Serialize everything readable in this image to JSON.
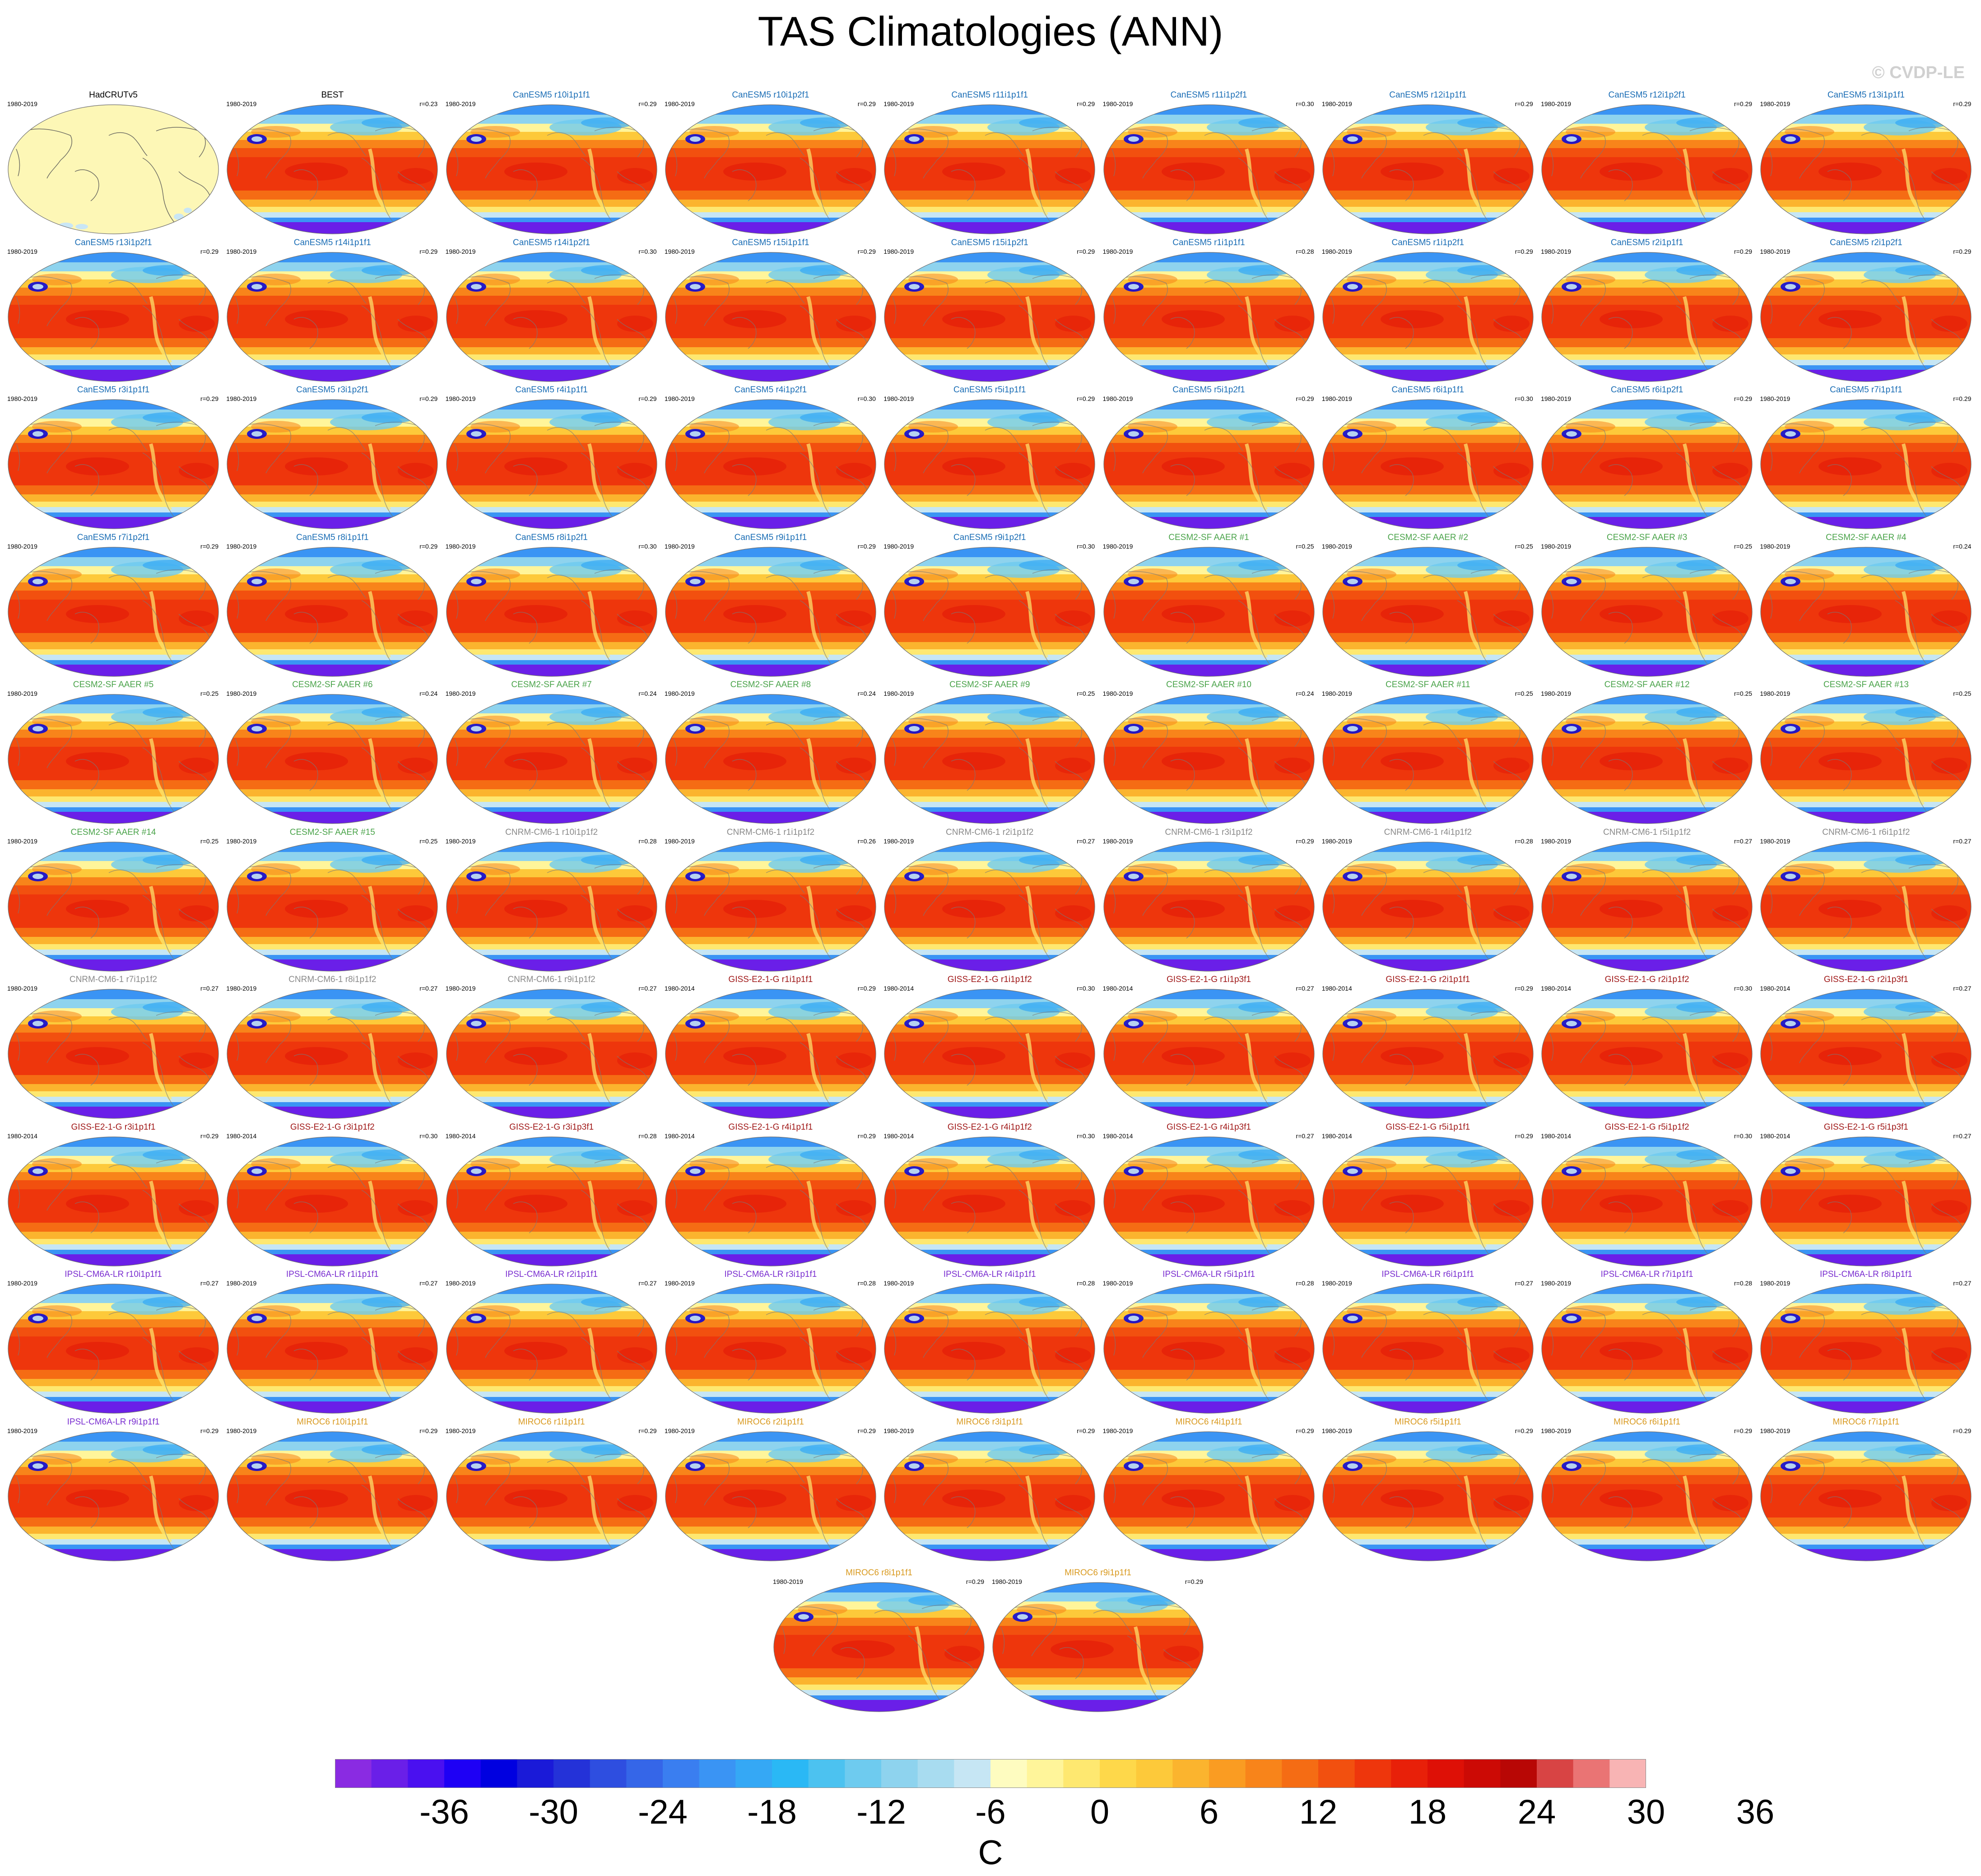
{
  "title": "TAS Climatologies (ANN)",
  "watermark": "© CVDP-LE",
  "colors": {
    "CanESM5": "#1a6db5",
    "CESM2": "#4aa34a",
    "CNRM": "#8a8a8a",
    "GISS": "#a01818",
    "IPSL": "#7a2ed0",
    "MIROC6": "#d99a20",
    "obs": "#000000"
  },
  "panels": [
    {
      "name": "HadCRUTv5",
      "period": "1980-2019",
      "r": "",
      "group": "obs",
      "obs": true
    },
    {
      "name": "BEST",
      "period": "1980-2019",
      "r": "r=0.23",
      "group": "obs"
    },
    {
      "name": "CanESM5 r10i1p1f1",
      "period": "1980-2019",
      "r": "r=0.29",
      "group": "CanESM5"
    },
    {
      "name": "CanESM5 r10i1p2f1",
      "period": "1980-2019",
      "r": "r=0.29",
      "group": "CanESM5"
    },
    {
      "name": "CanESM5 r11i1p1f1",
      "period": "1980-2019",
      "r": "r=0.29",
      "group": "CanESM5"
    },
    {
      "name": "CanESM5 r11i1p2f1",
      "period": "1980-2019",
      "r": "r=0.30",
      "group": "CanESM5"
    },
    {
      "name": "CanESM5 r12i1p1f1",
      "period": "1980-2019",
      "r": "r=0.29",
      "group": "CanESM5"
    },
    {
      "name": "CanESM5 r12i1p2f1",
      "period": "1980-2019",
      "r": "r=0.29",
      "group": "CanESM5"
    },
    {
      "name": "CanESM5 r13i1p1f1",
      "period": "1980-2019",
      "r": "r=0.29",
      "group": "CanESM5"
    },
    {
      "name": "CanESM5 r13i1p2f1",
      "period": "1980-2019",
      "r": "r=0.29",
      "group": "CanESM5"
    },
    {
      "name": "CanESM5 r14i1p1f1",
      "period": "1980-2019",
      "r": "r=0.29",
      "group": "CanESM5"
    },
    {
      "name": "CanESM5 r14i1p2f1",
      "period": "1980-2019",
      "r": "r=0.30",
      "group": "CanESM5"
    },
    {
      "name": "CanESM5 r15i1p1f1",
      "period": "1980-2019",
      "r": "r=0.29",
      "group": "CanESM5"
    },
    {
      "name": "CanESM5 r15i1p2f1",
      "period": "1980-2019",
      "r": "r=0.29",
      "group": "CanESM5"
    },
    {
      "name": "CanESM5 r1i1p1f1",
      "period": "1980-2019",
      "r": "r=0.28",
      "group": "CanESM5"
    },
    {
      "name": "CanESM5 r1i1p2f1",
      "period": "1980-2019",
      "r": "r=0.29",
      "group": "CanESM5"
    },
    {
      "name": "CanESM5 r2i1p1f1",
      "period": "1980-2019",
      "r": "r=0.29",
      "group": "CanESM5"
    },
    {
      "name": "CanESM5 r2i1p2f1",
      "period": "1980-2019",
      "r": "r=0.29",
      "group": "CanESM5"
    },
    {
      "name": "CanESM5 r3i1p1f1",
      "period": "1980-2019",
      "r": "r=0.29",
      "group": "CanESM5"
    },
    {
      "name": "CanESM5 r3i1p2f1",
      "period": "1980-2019",
      "r": "r=0.29",
      "group": "CanESM5"
    },
    {
      "name": "CanESM5 r4i1p1f1",
      "period": "1980-2019",
      "r": "r=0.29",
      "group": "CanESM5"
    },
    {
      "name": "CanESM5 r4i1p2f1",
      "period": "1980-2019",
      "r": "r=0.30",
      "group": "CanESM5"
    },
    {
      "name": "CanESM5 r5i1p1f1",
      "period": "1980-2019",
      "r": "r=0.29",
      "group": "CanESM5"
    },
    {
      "name": "CanESM5 r5i1p2f1",
      "period": "1980-2019",
      "r": "r=0.29",
      "group": "CanESM5"
    },
    {
      "name": "CanESM5 r6i1p1f1",
      "period": "1980-2019",
      "r": "r=0.30",
      "group": "CanESM5"
    },
    {
      "name": "CanESM5 r6i1p2f1",
      "period": "1980-2019",
      "r": "r=0.29",
      "group": "CanESM5"
    },
    {
      "name": "CanESM5 r7i1p1f1",
      "period": "1980-2019",
      "r": "r=0.29",
      "group": "CanESM5"
    },
    {
      "name": "CanESM5 r7i1p2f1",
      "period": "1980-2019",
      "r": "r=0.29",
      "group": "CanESM5"
    },
    {
      "name": "CanESM5 r8i1p1f1",
      "period": "1980-2019",
      "r": "r=0.29",
      "group": "CanESM5"
    },
    {
      "name": "CanESM5 r8i1p2f1",
      "period": "1980-2019",
      "r": "r=0.30",
      "group": "CanESM5"
    },
    {
      "name": "CanESM5 r9i1p1f1",
      "period": "1980-2019",
      "r": "r=0.29",
      "group": "CanESM5"
    },
    {
      "name": "CanESM5 r9i1p2f1",
      "period": "1980-2019",
      "r": "r=0.30",
      "group": "CanESM5"
    },
    {
      "name": "CESM2-SF AAER #1",
      "period": "1980-2019",
      "r": "r=0.25",
      "group": "CESM2"
    },
    {
      "name": "CESM2-SF AAER #2",
      "period": "1980-2019",
      "r": "r=0.25",
      "group": "CESM2"
    },
    {
      "name": "CESM2-SF AAER #3",
      "period": "1980-2019",
      "r": "r=0.25",
      "group": "CESM2"
    },
    {
      "name": "CESM2-SF AAER #4",
      "period": "1980-2019",
      "r": "r=0.24",
      "group": "CESM2"
    },
    {
      "name": "CESM2-SF AAER #5",
      "period": "1980-2019",
      "r": "r=0.25",
      "group": "CESM2"
    },
    {
      "name": "CESM2-SF AAER #6",
      "period": "1980-2019",
      "r": "r=0.24",
      "group": "CESM2"
    },
    {
      "name": "CESM2-SF AAER #7",
      "period": "1980-2019",
      "r": "r=0.24",
      "group": "CESM2"
    },
    {
      "name": "CESM2-SF AAER #8",
      "period": "1980-2019",
      "r": "r=0.24",
      "group": "CESM2"
    },
    {
      "name": "CESM2-SF AAER #9",
      "period": "1980-2019",
      "r": "r=0.25",
      "group": "CESM2"
    },
    {
      "name": "CESM2-SF AAER #10",
      "period": "1980-2019",
      "r": "r=0.24",
      "group": "CESM2"
    },
    {
      "name": "CESM2-SF AAER #11",
      "period": "1980-2019",
      "r": "r=0.25",
      "group": "CESM2"
    },
    {
      "name": "CESM2-SF AAER #12",
      "period": "1980-2019",
      "r": "r=0.25",
      "group": "CESM2"
    },
    {
      "name": "CESM2-SF AAER #13",
      "period": "1980-2019",
      "r": "r=0.25",
      "group": "CESM2"
    },
    {
      "name": "CESM2-SF AAER #14",
      "period": "1980-2019",
      "r": "r=0.25",
      "group": "CESM2"
    },
    {
      "name": "CESM2-SF AAER #15",
      "period": "1980-2019",
      "r": "r=0.25",
      "group": "CESM2"
    },
    {
      "name": "CNRM-CM6-1 r10i1p1f2",
      "period": "1980-2019",
      "r": "r=0.28",
      "group": "CNRM"
    },
    {
      "name": "CNRM-CM6-1 r1i1p1f2",
      "period": "1980-2019",
      "r": "r=0.26",
      "group": "CNRM"
    },
    {
      "name": "CNRM-CM6-1 r2i1p1f2",
      "period": "1980-2019",
      "r": "r=0.27",
      "group": "CNRM"
    },
    {
      "name": "CNRM-CM6-1 r3i1p1f2",
      "period": "1980-2019",
      "r": "r=0.29",
      "group": "CNRM"
    },
    {
      "name": "CNRM-CM6-1 r4i1p1f2",
      "period": "1980-2019",
      "r": "r=0.28",
      "group": "CNRM"
    },
    {
      "name": "CNRM-CM6-1 r5i1p1f2",
      "period": "1980-2019",
      "r": "r=0.27",
      "group": "CNRM"
    },
    {
      "name": "CNRM-CM6-1 r6i1p1f2",
      "period": "1980-2019",
      "r": "r=0.27",
      "group": "CNRM"
    },
    {
      "name": "CNRM-CM6-1 r7i1p1f2",
      "period": "1980-2019",
      "r": "r=0.27",
      "group": "CNRM"
    },
    {
      "name": "CNRM-CM6-1 r8i1p1f2",
      "period": "1980-2019",
      "r": "r=0.27",
      "group": "CNRM"
    },
    {
      "name": "CNRM-CM6-1 r9i1p1f2",
      "period": "1980-2019",
      "r": "r=0.27",
      "group": "CNRM"
    },
    {
      "name": "GISS-E2-1-G r1i1p1f1",
      "period": "1980-2014",
      "r": "r=0.29",
      "group": "GISS"
    },
    {
      "name": "GISS-E2-1-G r1i1p1f2",
      "period": "1980-2014",
      "r": "r=0.30",
      "group": "GISS"
    },
    {
      "name": "GISS-E2-1-G r1i1p3f1",
      "period": "1980-2014",
      "r": "r=0.27",
      "group": "GISS"
    },
    {
      "name": "GISS-E2-1-G r2i1p1f1",
      "period": "1980-2014",
      "r": "r=0.29",
      "group": "GISS"
    },
    {
      "name": "GISS-E2-1-G r2i1p1f2",
      "period": "1980-2014",
      "r": "r=0.30",
      "group": "GISS"
    },
    {
      "name": "GISS-E2-1-G r2i1p3f1",
      "period": "1980-2014",
      "r": "r=0.27",
      "group": "GISS"
    },
    {
      "name": "GISS-E2-1-G r3i1p1f1",
      "period": "1980-2014",
      "r": "r=0.29",
      "group": "GISS"
    },
    {
      "name": "GISS-E2-1-G r3i1p1f2",
      "period": "1980-2014",
      "r": "r=0.30",
      "group": "GISS"
    },
    {
      "name": "GISS-E2-1-G r3i1p3f1",
      "period": "1980-2014",
      "r": "r=0.28",
      "group": "GISS"
    },
    {
      "name": "GISS-E2-1-G r4i1p1f1",
      "period": "1980-2014",
      "r": "r=0.29",
      "group": "GISS"
    },
    {
      "name": "GISS-E2-1-G r4i1p1f2",
      "period": "1980-2014",
      "r": "r=0.30",
      "group": "GISS"
    },
    {
      "name": "GISS-E2-1-G r4i1p3f1",
      "period": "1980-2014",
      "r": "r=0.27",
      "group": "GISS"
    },
    {
      "name": "GISS-E2-1-G r5i1p1f1",
      "period": "1980-2014",
      "r": "r=0.29",
      "group": "GISS"
    },
    {
      "name": "GISS-E2-1-G r5i1p1f2",
      "period": "1980-2014",
      "r": "r=0.30",
      "group": "GISS"
    },
    {
      "name": "GISS-E2-1-G r5i1p3f1",
      "period": "1980-2014",
      "r": "r=0.27",
      "group": "GISS"
    },
    {
      "name": "IPSL-CM6A-LR r10i1p1f1",
      "period": "1980-2019",
      "r": "r=0.27",
      "group": "IPSL"
    },
    {
      "name": "IPSL-CM6A-LR r1i1p1f1",
      "period": "1980-2019",
      "r": "r=0.27",
      "group": "IPSL"
    },
    {
      "name": "IPSL-CM6A-LR r2i1p1f1",
      "period": "1980-2019",
      "r": "r=0.27",
      "group": "IPSL"
    },
    {
      "name": "IPSL-CM6A-LR r3i1p1f1",
      "period": "1980-2019",
      "r": "r=0.28",
      "group": "IPSL"
    },
    {
      "name": "IPSL-CM6A-LR r4i1p1f1",
      "period": "1980-2019",
      "r": "r=0.28",
      "group": "IPSL"
    },
    {
      "name": "IPSL-CM6A-LR r5i1p1f1",
      "period": "1980-2019",
      "r": "r=0.28",
      "group": "IPSL"
    },
    {
      "name": "IPSL-CM6A-LR r6i1p1f1",
      "period": "1980-2019",
      "r": "r=0.27",
      "group": "IPSL"
    },
    {
      "name": "IPSL-CM6A-LR r7i1p1f1",
      "period": "1980-2019",
      "r": "r=0.28",
      "group": "IPSL"
    },
    {
      "name": "IPSL-CM6A-LR r8i1p1f1",
      "period": "1980-2019",
      "r": "r=0.27",
      "group": "IPSL"
    },
    {
      "name": "IPSL-CM6A-LR r9i1p1f1",
      "period": "1980-2019",
      "r": "r=0.29",
      "group": "IPSL"
    },
    {
      "name": "MIROC6 r10i1p1f1",
      "period": "1980-2019",
      "r": "r=0.29",
      "group": "MIROC6"
    },
    {
      "name": "MIROC6 r1i1p1f1",
      "period": "1980-2019",
      "r": "r=0.29",
      "group": "MIROC6"
    },
    {
      "name": "MIROC6 r2i1p1f1",
      "period": "1980-2019",
      "r": "r=0.29",
      "group": "MIROC6"
    },
    {
      "name": "MIROC6 r3i1p1f1",
      "period": "1980-2019",
      "r": "r=0.29",
      "group": "MIROC6"
    },
    {
      "name": "MIROC6 r4i1p1f1",
      "period": "1980-2019",
      "r": "r=0.29",
      "group": "MIROC6"
    },
    {
      "name": "MIROC6 r5i1p1f1",
      "period": "1980-2019",
      "r": "r=0.29",
      "group": "MIROC6"
    },
    {
      "name": "MIROC6 r6i1p1f1",
      "period": "1980-2019",
      "r": "r=0.29",
      "group": "MIROC6"
    },
    {
      "name": "MIROC6 r7i1p1f1",
      "period": "1980-2019",
      "r": "r=0.29",
      "group": "MIROC6"
    },
    {
      "name": "MIROC6 r8i1p1f1",
      "period": "1980-2019",
      "r": "r=0.29",
      "group": "MIROC6"
    },
    {
      "name": "MIROC6 r9i1p1f1",
      "period": "1980-2019",
      "r": "r=0.29",
      "group": "MIROC6"
    }
  ],
  "colorbar": {
    "units": "C",
    "labels": [
      "-36",
      "-30",
      "-24",
      "-18",
      "-12",
      "-6",
      "0",
      "6",
      "12",
      "18",
      "24",
      "30",
      "36"
    ],
    "colors": [
      "#8a2be2",
      "#6a1fe8",
      "#4a10f0",
      "#1e00f5",
      "#0000e0",
      "#1a1ad8",
      "#2432d8",
      "#2e4ee0",
      "#3566e8",
      "#3a7ef0",
      "#3a94f4",
      "#35a8f5",
      "#2ab8f5",
      "#4cc2f0",
      "#6ecbef",
      "#8ed3ee",
      "#a8dcf0",
      "#c6e6f4",
      "#fefcc0",
      "#fff59a",
      "#fee870",
      "#fed84a",
      "#fdc93a",
      "#fbb42e",
      "#fa9c22",
      "#f8841a",
      "#f56c14",
      "#f2500f",
      "#ee360c",
      "#e82009",
      "#de1006",
      "#cc0a05",
      "#b80705",
      "#d84444",
      "#ea7474",
      "#f8b4b4"
    ]
  }
}
